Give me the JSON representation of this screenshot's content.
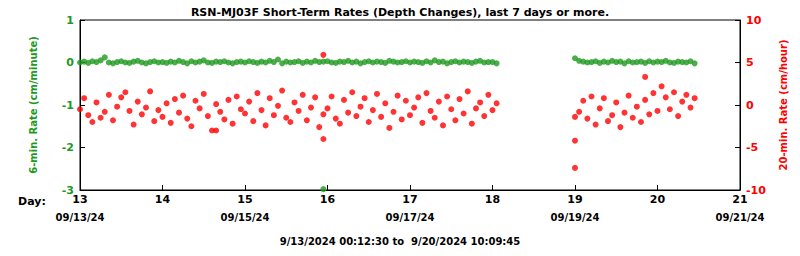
{
  "chart_data": {
    "type": "scatter",
    "title": "RSN-MJ03F Short-Term Rates (Depth Changes), last 7 days or more.",
    "subtitle": "9/13/2024 00:12:30 to  9/20/2024 10:09:45",
    "x_label": "Day:",
    "ylabel": "6-min. Rate (cm/minute)",
    "y2label": "20-min. Rate (cm/hour)",
    "xlim": [
      13,
      21
    ],
    "xticks": [
      13,
      14,
      15,
      16,
      17,
      18,
      19,
      20,
      21
    ],
    "x2ticks": [
      {
        "value": 13,
        "label": "09/13/24"
      },
      {
        "value": 15,
        "label": "09/15/24"
      },
      {
        "value": 17,
        "label": "09/17/24"
      },
      {
        "value": 19,
        "label": "09/19/24"
      },
      {
        "value": 21,
        "label": "09/21/24"
      }
    ],
    "ylim": [
      -3,
      1
    ],
    "yticks": [
      -3,
      -2,
      -1,
      0,
      1
    ],
    "y2lim": [
      -10,
      10
    ],
    "y2ticks": [
      -10,
      -5,
      0,
      5,
      10
    ],
    "grid": false,
    "series": [
      {
        "color": "#1e9a1e",
        "marker": "circle",
        "x": [
          13,
          13.05,
          13.1,
          13.15,
          13.2,
          13.25,
          13.3,
          13.35,
          13.4,
          13.45,
          13.5,
          13.55,
          13.6,
          13.65,
          13.7,
          13.75,
          13.8,
          13.85,
          13.9,
          13.95,
          14,
          14.05,
          14.1,
          14.15,
          14.2,
          14.25,
          14.3,
          14.35,
          14.4,
          14.45,
          14.5,
          14.55,
          14.6,
          14.65,
          14.7,
          14.75,
          14.8,
          14.85,
          14.9,
          14.95,
          15,
          15.05,
          15.1,
          15.15,
          15.2,
          15.25,
          15.3,
          15.35,
          15.4,
          15.45,
          15.5,
          15.55,
          15.6,
          15.65,
          15.7,
          15.75,
          15.8,
          15.85,
          15.9,
          15.95,
          16,
          16.05,
          16.1,
          16.15,
          16.2,
          16.25,
          16.3,
          16.35,
          16.4,
          16.45,
          16.5,
          16.55,
          16.6,
          16.65,
          16.7,
          16.75,
          16.8,
          16.85,
          16.9,
          16.95,
          17,
          17.05,
          17.1,
          17.15,
          17.2,
          17.25,
          17.3,
          17.35,
          17.4,
          17.45,
          17.5,
          17.55,
          17.6,
          17.65,
          17.7,
          17.75,
          17.8,
          17.85,
          17.9,
          17.95,
          18,
          18.05,
          19,
          19.05,
          19.1,
          19.15,
          19.2,
          19.25,
          19.3,
          19.35,
          19.4,
          19.45,
          19.5,
          19.55,
          19.6,
          19.65,
          19.7,
          19.75,
          19.8,
          19.85,
          19.9,
          19.95,
          20,
          20.05,
          20.1,
          20.15,
          20.2,
          20.25,
          20.3,
          20.35,
          20.4,
          20.45,
          15.95
        ],
        "values": [
          0,
          0.02,
          -0.01,
          0.03,
          0.01,
          0.05,
          0.12,
          0,
          -0.02,
          0.01,
          0.03,
          0,
          -0.01,
          0.02,
          0.04,
          0,
          -0.02,
          0.01,
          0.03,
          0,
          0.01,
          -0.01,
          0.02,
          0,
          0.04,
          0.01,
          -0.02,
          0.03,
          0,
          0.02,
          0.05,
          0,
          -0.01,
          0.02,
          0.01,
          0.03,
          0,
          -0.02,
          0.01,
          0.02,
          0,
          0.03,
          0.01,
          -0.01,
          0.02,
          0,
          0.04,
          0.01,
          0.07,
          -0.02,
          0.02,
          0,
          0.01,
          0.03,
          -0.01,
          0.02,
          0,
          0.04,
          0.01,
          0.02,
          0.03,
          0,
          -0.01,
          0.02,
          0.01,
          0.04,
          0,
          0.02,
          -0.02,
          0.01,
          0.03,
          0,
          0.02,
          0.01,
          -0.01,
          0.04,
          0.02,
          0,
          0.01,
          0.03,
          0,
          0.02,
          0.01,
          -0.01,
          0.03,
          0,
          0.05,
          0.01,
          0.02,
          -0.02,
          0.01,
          0.03,
          0,
          0.02,
          0.01,
          -0.01,
          0.02,
          0.04,
          0,
          0.01,
          0.01,
          -0.02,
          0.1,
          0.04,
          0.02,
          0,
          0.01,
          0.03,
          -0.01,
          0.02,
          0,
          0.04,
          0.01,
          0.02,
          -0.02,
          0.03,
          0,
          0.01,
          0.02,
          -0.01,
          0.03,
          0,
          0.02,
          0.01,
          0.04,
          0,
          -0.01,
          0.02,
          0.01,
          0,
          0.03,
          -0.02,
          -2.98
        ]
      },
      {
        "color": "#ff0000",
        "marker": "circle",
        "axis": "y2",
        "x": [
          13,
          13.05,
          13.1,
          13.15,
          13.2,
          13.25,
          13.3,
          13.35,
          13.4,
          13.45,
          13.5,
          13.55,
          13.6,
          13.65,
          13.7,
          13.75,
          13.8,
          13.85,
          13.9,
          13.95,
          14,
          14.05,
          14.1,
          14.15,
          14.2,
          14.25,
          14.3,
          14.35,
          14.4,
          14.45,
          14.5,
          14.55,
          14.6,
          14.65,
          14.7,
          14.75,
          14.8,
          14.85,
          14.9,
          14.95,
          15,
          15.05,
          15.1,
          15.15,
          15.2,
          15.25,
          15.3,
          15.35,
          15.4,
          15.45,
          15.5,
          15.55,
          15.6,
          15.65,
          15.7,
          15.75,
          15.8,
          15.85,
          15.9,
          15.95,
          16,
          16.05,
          16.1,
          16.15,
          16.2,
          16.25,
          16.3,
          16.35,
          16.4,
          16.45,
          16.5,
          16.55,
          16.6,
          16.65,
          16.7,
          16.75,
          16.8,
          16.85,
          16.9,
          16.95,
          17,
          17.05,
          17.1,
          17.15,
          17.2,
          17.25,
          17.3,
          17.35,
          17.4,
          17.45,
          17.5,
          17.55,
          17.6,
          17.65,
          17.7,
          17.75,
          17.8,
          17.85,
          17.9,
          17.95,
          18,
          18.05,
          19,
          19.05,
          19.1,
          19.15,
          19.2,
          19.25,
          19.3,
          19.35,
          19.4,
          19.45,
          19.5,
          19.55,
          19.6,
          19.65,
          19.7,
          19.75,
          19.8,
          19.85,
          19.9,
          19.95,
          20,
          20.05,
          20.1,
          20.15,
          20.2,
          20.25,
          20.3,
          20.35,
          20.4,
          20.45,
          15.95,
          15.95,
          14.65,
          19,
          19,
          19.85
        ],
        "values": [
          -0.5,
          0.8,
          -1.2,
          -2.0,
          0.3,
          -1.5,
          -0.8,
          1.2,
          -1.8,
          -0.2,
          0.9,
          1.5,
          -0.7,
          -2.3,
          0.4,
          -1.1,
          -0.3,
          1.6,
          -1.9,
          -0.6,
          -1.4,
          0.2,
          -2.1,
          0.7,
          -0.9,
          1.1,
          -1.6,
          -2.5,
          0.5,
          -0.4,
          1.3,
          -1.3,
          -3.0,
          0.1,
          -0.8,
          -1.7,
          0.6,
          -2.2,
          1.0,
          -0.5,
          -1.0,
          0.4,
          -1.9,
          1.4,
          -0.6,
          -2.4,
          0.8,
          -1.2,
          -0.1,
          1.7,
          -1.5,
          -2.0,
          0.3,
          -0.7,
          1.2,
          -1.8,
          -0.3,
          0.9,
          -2.6,
          -1.1,
          -0.4,
          1.0,
          -1.6,
          -2.2,
          0.6,
          -0.9,
          1.5,
          -1.3,
          -0.2,
          0.8,
          -2.0,
          -0.6,
          1.3,
          -1.4,
          0.2,
          -2.7,
          -0.8,
          1.1,
          -1.7,
          0.5,
          -1.2,
          -0.3,
          0.9,
          -2.1,
          1.4,
          -0.7,
          -1.5,
          0.4,
          -2.4,
          1.0,
          -0.5,
          -1.8,
          0.7,
          -1.0,
          1.6,
          -2.2,
          -0.4,
          0.3,
          -1.3,
          1.2,
          -0.6,
          0.2,
          -1.4,
          -0.8,
          0.5,
          -1.6,
          1.0,
          -2.3,
          -0.4,
          0.8,
          -1.9,
          -1.2,
          0.3,
          -2.6,
          -0.9,
          1.1,
          -1.5,
          -0.2,
          -2.0,
          0.6,
          -1.1,
          1.4,
          -0.7,
          2.2,
          0.9,
          -0.5,
          1.5,
          -1.3,
          0.4,
          1.2,
          -0.3,
          0.8,
          5.9,
          -4.0,
          -3.0,
          -7.4,
          -4.2,
          3.3
        ]
      }
    ]
  }
}
